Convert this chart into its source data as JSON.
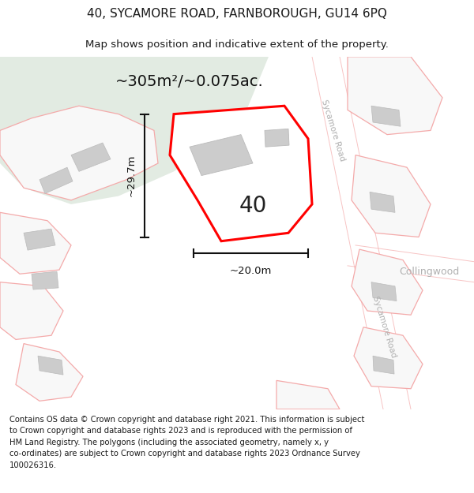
{
  "title": "40, SYCAMORE ROAD, FARNBOROUGH, GU14 6PQ",
  "subtitle": "Map shows position and indicative extent of the property.",
  "footer": "Contains OS data © Crown copyright and database right 2021. This information is subject to Crown copyright and database rights 2023 and is reproduced with the permission of HM Land Registry. The polygons (including the associated geometry, namely x, y co-ordinates) are subject to Crown copyright and database rights 2023 Ordnance Survey 100026316.",
  "area_label": "~305m²/~0.075ac.",
  "number_label": "40",
  "width_label": "~20.0m",
  "height_label": "~29.7m",
  "map_bg": "#f2f2f2",
  "green_color": "#e2ebe2",
  "road_color": "#ffffff",
  "subject_fill": "#ffffff",
  "subject_edge": "#ff0000",
  "other_edge": "#f4aaaa",
  "other_fill": "#f8f8f8",
  "building_fill": "#cccccc",
  "building_edge": "#bbbbbb",
  "road_label_color": "#b0b0b0",
  "dim_color": "#111111",
  "title_fontsize": 11,
  "subtitle_fontsize": 9.5,
  "footer_fontsize": 7.2,
  "area_fontsize": 14,
  "number_fontsize": 20
}
